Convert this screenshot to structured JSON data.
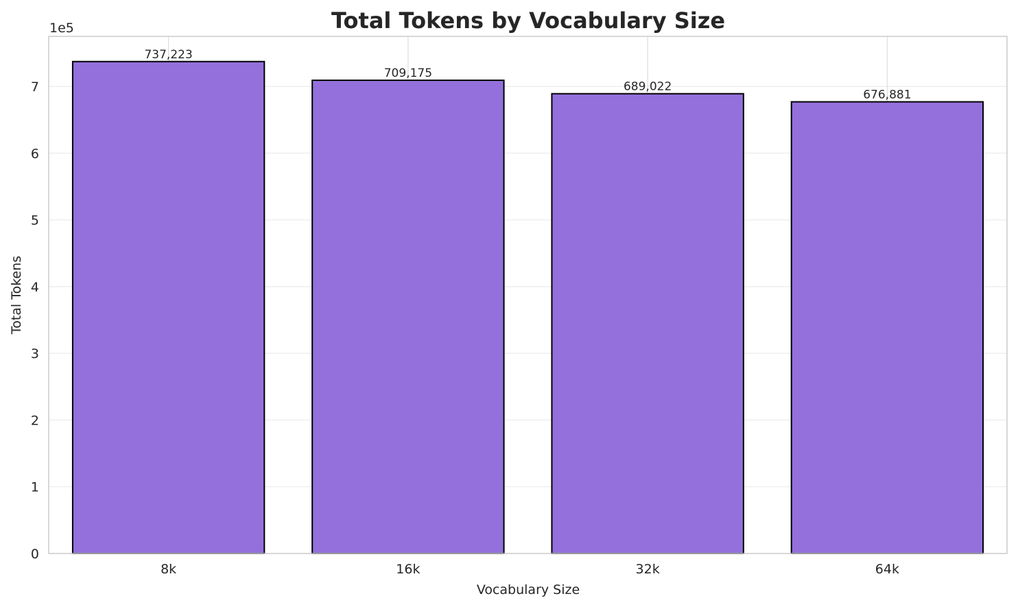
{
  "chart_data": {
    "type": "bar",
    "title": "Total Tokens by Vocabulary Size",
    "xlabel": "Vocabulary Size",
    "ylabel": "Total Tokens",
    "categories": [
      "8k",
      "16k",
      "32k",
      "64k"
    ],
    "values": [
      737223,
      709175,
      689022,
      676881
    ],
    "value_labels": [
      "737,223",
      "709,175",
      "689,022",
      "676,881"
    ],
    "ylim": [
      0,
      775000
    ],
    "y_ticks": [
      0,
      100000,
      200000,
      300000,
      400000,
      500000,
      600000,
      700000
    ],
    "y_tick_labels": [
      "0",
      "1",
      "2",
      "3",
      "4",
      "5",
      "6",
      "7"
    ],
    "y_offset_label": "1e5",
    "grid": true,
    "colors": {
      "bar_fill": "#9370DB",
      "bar_edge": "#000000",
      "grid": "#EBEBEB",
      "spine": "#CCCCCC",
      "text": "#262626"
    }
  }
}
